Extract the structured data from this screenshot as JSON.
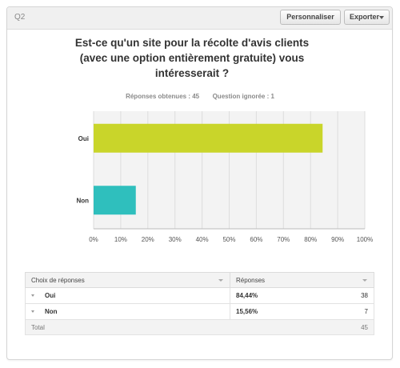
{
  "header": {
    "question_label": "Q2",
    "customize_label": "Personnaliser",
    "export_label": "Exporter"
  },
  "question_title": "Est-ce qu'un site pour la récolte d'avis clients (avec une option entièrement gratuite) vous intéresserait ?",
  "stats": {
    "answered": "Réponses obtenues : 45",
    "skipped": "Question ignorée : 1"
  },
  "colors": {
    "oui": "#c9d52a",
    "non": "#2fbfbd",
    "grid": "#dddddd",
    "plot_bg": "#f3f3f3"
  },
  "chart_data": {
    "type": "bar",
    "orientation": "horizontal",
    "categories": [
      "Oui",
      "Non"
    ],
    "values": [
      84.44,
      15.56
    ],
    "xlim": [
      0,
      100
    ],
    "xticks": [
      "0%",
      "10%",
      "20%",
      "30%",
      "40%",
      "50%",
      "60%",
      "70%",
      "80%",
      "90%",
      "100%"
    ],
    "title": "Est-ce qu'un site pour la récolte d'avis clients (avec une option entièrement gratuite) vous intéresserait ?"
  },
  "table": {
    "col_choices": "Choix de réponses",
    "col_responses": "Réponses",
    "rows": [
      {
        "answer": "Oui",
        "percent": "84,44%",
        "count": "38"
      },
      {
        "answer": "Non",
        "percent": "15,56%",
        "count": "7"
      }
    ],
    "total_label": "Total",
    "total_count": "45"
  }
}
